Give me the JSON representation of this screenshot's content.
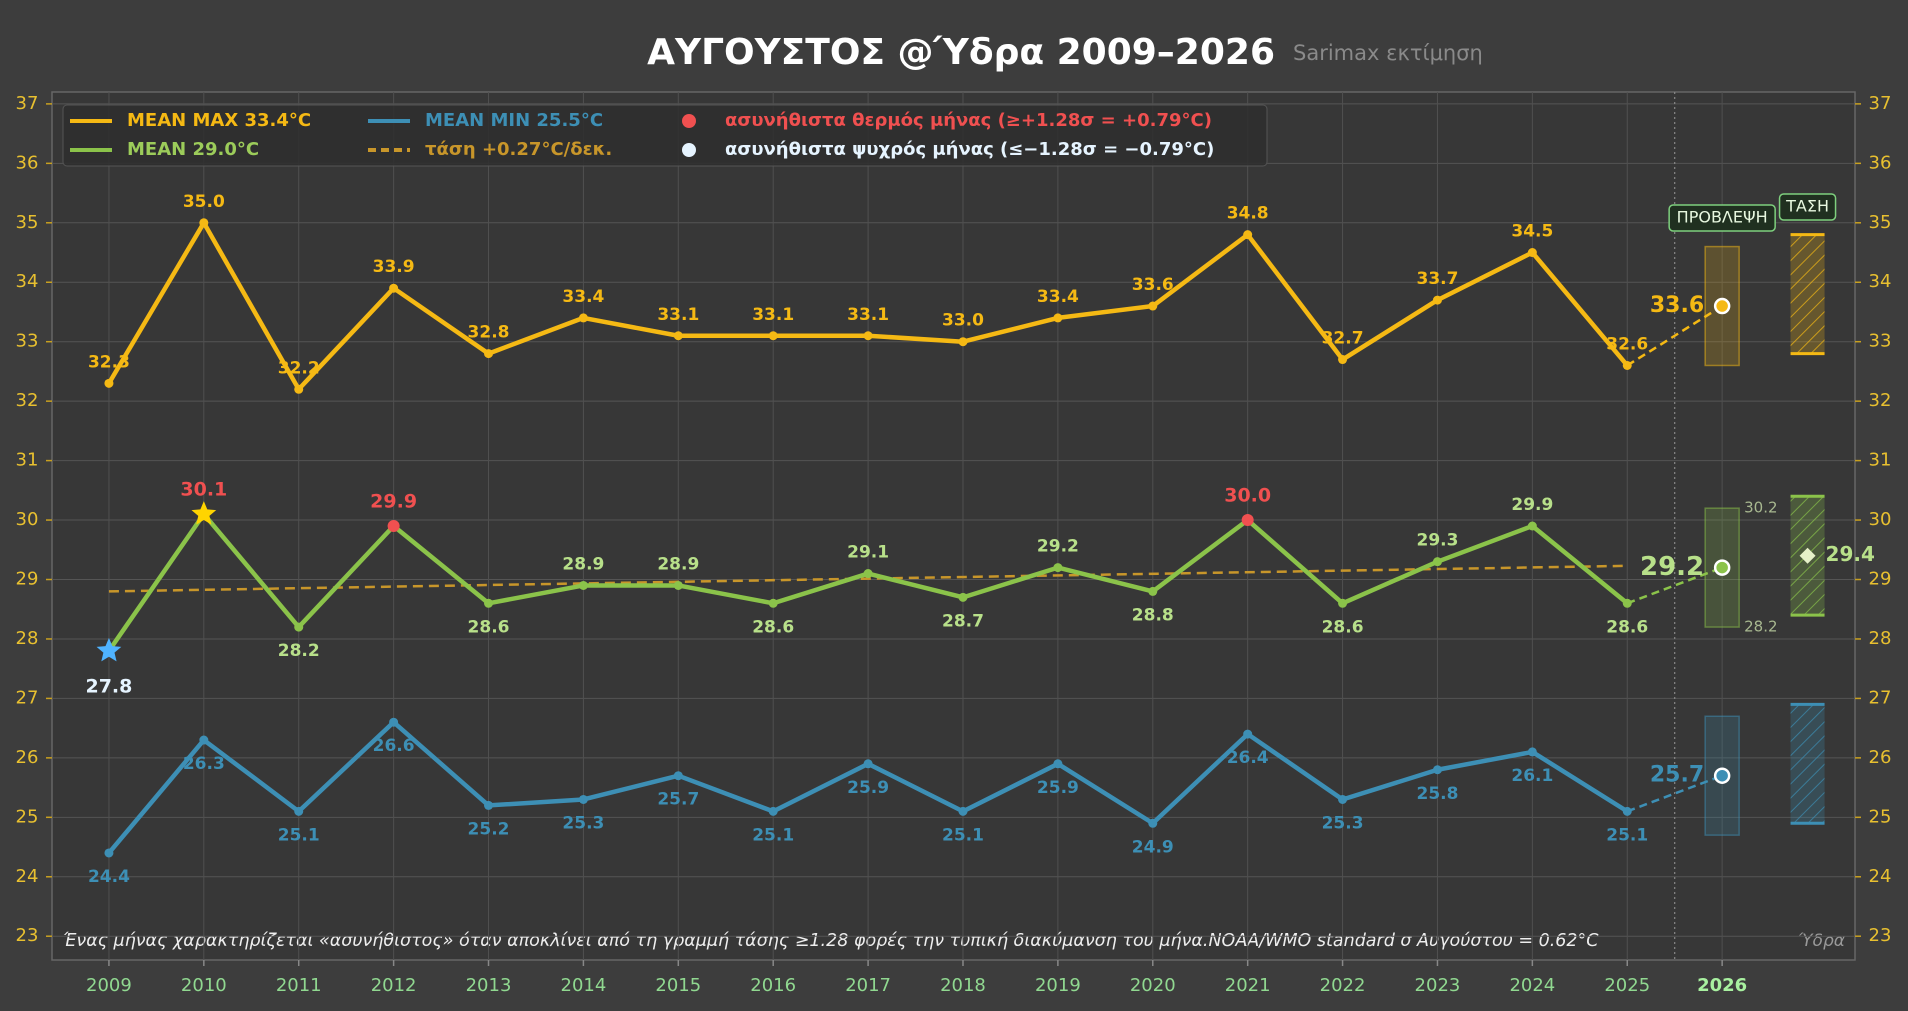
{
  "chart_data": {
    "type": "line",
    "title": "ΑΥΓΟΥΣΤΟΣ  @Ύδρα  2009–2026",
    "subtitle": "Sarimax εκτίμηση",
    "x": [
      2009,
      2010,
      2011,
      2012,
      2013,
      2014,
      2015,
      2016,
      2017,
      2018,
      2019,
      2020,
      2021,
      2022,
      2023,
      2024,
      2025
    ],
    "series": [
      {
        "name": "MEAN MAX 33.4°C",
        "color": "#f5b914",
        "values": [
          32.3,
          35.0,
          32.2,
          33.9,
          32.8,
          33.4,
          33.1,
          33.1,
          33.1,
          33.0,
          33.4,
          33.6,
          34.8,
          32.7,
          33.7,
          34.5,
          32.6
        ],
        "value_labels": [
          "32.3",
          "35.0",
          "32.2",
          "33.9",
          "32.8",
          "33.4",
          "33.1",
          "33.1",
          "33.1",
          "33.0",
          "33.4",
          "33.6",
          "34.8",
          "32.7",
          "33.7",
          "34.5",
          "32.6"
        ]
      },
      {
        "name": "MEAN 29.0°C",
        "color": "#8bc34a",
        "values": [
          27.8,
          30.1,
          28.2,
          29.9,
          28.6,
          28.9,
          28.9,
          28.6,
          29.1,
          28.7,
          29.2,
          28.8,
          30.0,
          28.6,
          29.3,
          29.9,
          28.6
        ],
        "value_labels": [
          "27.8",
          "30.1",
          "28.2",
          "29.9",
          "28.6",
          "28.9",
          "28.9",
          "28.6",
          "29.1",
          "28.7",
          "29.2",
          "28.8",
          "30.0",
          "28.6",
          "29.3",
          "29.9",
          "28.6"
        ]
      },
      {
        "name": "MEAN MIN 25.5°C",
        "color": "#3d8fb5",
        "values": [
          24.4,
          26.3,
          25.1,
          26.6,
          25.2,
          25.3,
          25.7,
          25.1,
          25.9,
          25.1,
          25.9,
          24.9,
          26.4,
          25.3,
          25.8,
          26.1,
          25.1
        ],
        "value_labels": [
          "24.4",
          "26.3",
          "25.1",
          "26.6",
          "25.2",
          "25.3",
          "25.7",
          "25.1",
          "25.9",
          "25.1",
          "25.9",
          "24.9",
          "26.4",
          "25.3",
          "25.8",
          "26.1",
          "25.1"
        ]
      }
    ],
    "trend": {
      "name": "τάση +0.27°C/δεκ.",
      "color": "#c8962a",
      "x": [
        2009,
        2025
      ],
      "values": [
        28.8,
        29.23
      ]
    },
    "anomalies": [
      {
        "name": "ασυνήθιστα θερμός μήνας (≥+1.28σ = +0.79°C)",
        "color": "#f05050",
        "star_color": "#ffd400",
        "x": [
          2010,
          2012,
          2021
        ]
      },
      {
        "name": "ασυνήθιστα ψυχρός μήνας (≤−1.28σ = −0.79°C)",
        "color": "#e6f4ff",
        "star_color": "#4fb3ff",
        "x": [
          2009
        ]
      }
    ],
    "forecast": {
      "label": "ΠΡΟΒΛΕΨΗ",
      "x": 2026,
      "values": [
        33.6,
        29.2,
        25.7
      ],
      "ranges": [
        [
          32.6,
          34.6
        ],
        [
          28.2,
          30.2
        ],
        [
          24.7,
          26.7
        ]
      ]
    },
    "trend_projection": {
      "label": "ΤΑΣΗ",
      "x": 2026.9,
      "value": 29.4,
      "ranges": [
        [
          32.8,
          34.8
        ],
        [
          28.4,
          30.4
        ],
        [
          24.9,
          26.9
        ]
      ]
    },
    "xlim": [
      2008.4,
      2027.4
    ],
    "xticks": [
      2009,
      2010,
      2011,
      2012,
      2013,
      2014,
      2015,
      2016,
      2017,
      2018,
      2019,
      2020,
      2021,
      2022,
      2023,
      2024,
      2025,
      2026
    ],
    "ylim": [
      22.6,
      37.2
    ],
    "yticks": [
      23,
      24,
      25,
      26,
      27,
      28,
      29,
      30,
      31,
      32,
      33,
      34,
      35,
      36,
      37
    ],
    "grid": true,
    "annotation": "Ένας μήνας χαρακτηρίζεται «ασυνήθιστος» όταν αποκλίνει από τη γραμμή τάσης ≥1.28 φορές την τυπική διακύμανση του μήνα.NOAA/WMO standard  σ Αυγούστου = 0.62°C",
    "corner_label": "Ύδρα"
  }
}
